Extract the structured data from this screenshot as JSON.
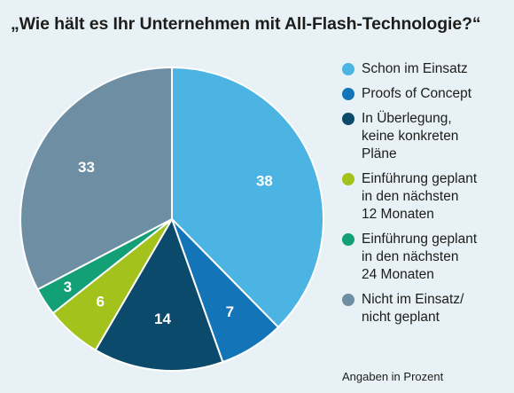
{
  "chart_data": {
    "type": "pie",
    "title": "„Wie hält es Ihr Unternehmen mit All-Flash-Technologie?“",
    "note": "Angaben in Prozent",
    "legend_position": "right",
    "slices": [
      {
        "label": "Schon im Einsatz",
        "value": 38,
        "color": "#4bb4e3"
      },
      {
        "label": "Proofs of Concept",
        "value": 7,
        "color": "#1474b8"
      },
      {
        "label": "In Überlegung,\nkeine konkreten\nPläne",
        "value": 14,
        "color": "#0b4a6b"
      },
      {
        "label": "Einführung geplant\nin den nächsten\n12 Monaten",
        "value": 6,
        "color": "#a3c21b"
      },
      {
        "label": "Einführung geplant\nin den nächsten\n24 Monaten",
        "value": 3,
        "color": "#14a077"
      },
      {
        "label": "Nicht im Einsatz/\nnicht geplant",
        "value": 33,
        "color": "#6d8ea3"
      }
    ]
  }
}
